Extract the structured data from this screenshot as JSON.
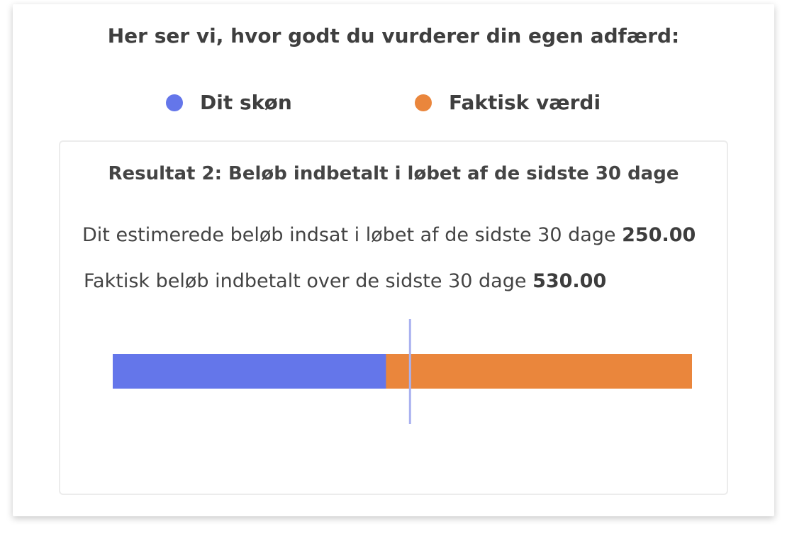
{
  "heading": "Her ser vi, hvor godt du vurderer din egen adfærd:",
  "legend": [
    {
      "label": "Dit skøn",
      "color": "#6476ea"
    },
    {
      "label": "Faktisk værdi",
      "color": "#ea863c"
    }
  ],
  "panel": {
    "title": "Resultat 2: Beløb indbetalt i løbet af de sidste 30 dage",
    "estimate_label": "Dit estimerede beløb indsat i løbet af de sidste 30 dage",
    "estimate_value": "250.00",
    "actual_label": "Faktisk beløb indbetalt over de sidste 30 dage",
    "actual_value": "530.00"
  },
  "chart_data": {
    "type": "bar",
    "orientation": "horizontal",
    "series": [
      {
        "name": "Dit skøn",
        "value": 250,
        "color": "#6476ea"
      },
      {
        "name": "Faktisk værdi",
        "value": 530,
        "color": "#ea863c"
      }
    ],
    "xlim": [
      0,
      530
    ],
    "marker_value": 272,
    "marker_color": "#a9b1f0"
  }
}
